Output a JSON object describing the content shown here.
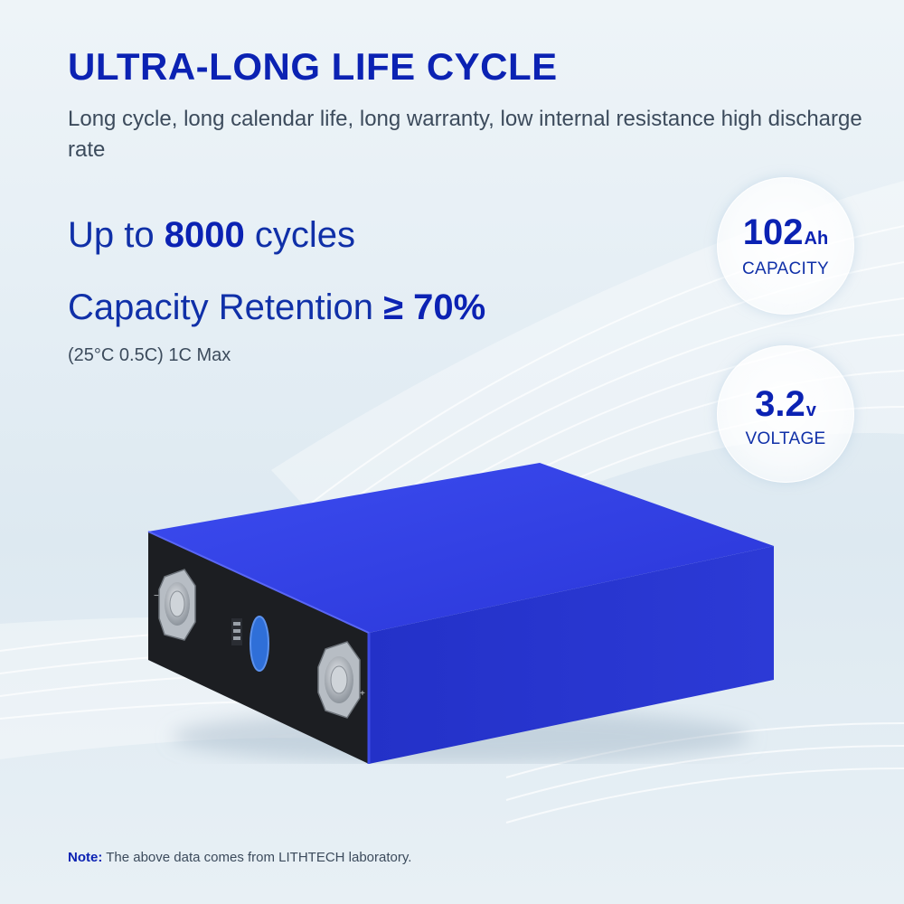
{
  "header": {
    "title": "ULTRA-LONG LIFE CYCLE",
    "subtitle": "Long cycle, long calendar life, long warranty, low internal resistance high discharge rate"
  },
  "stats": {
    "cycles_prefix": "Up to ",
    "cycles_value": "8000",
    "cycles_suffix": " cycles",
    "retention_prefix": "Capacity Retention ",
    "retention_value": "≥ 70%",
    "conditions": "(25°C 0.5C) 1C Max"
  },
  "badges": {
    "capacity": {
      "value": "102",
      "unit": "Ah",
      "label": "CAPACITY"
    },
    "voltage": {
      "value": "3.2",
      "unit": "v",
      "label": "VOLTAGE"
    }
  },
  "battery": {
    "negative_mark": "−",
    "positive_mark": "+",
    "body_color": "#2a37e0",
    "terminal_face_color": "#1c1e22"
  },
  "footer": {
    "note_label": "Note:",
    "note_text": " The above data comes from LITHTECH laboratory."
  },
  "colors": {
    "accent": "#0b22b3",
    "text": "#3c4b5c"
  }
}
